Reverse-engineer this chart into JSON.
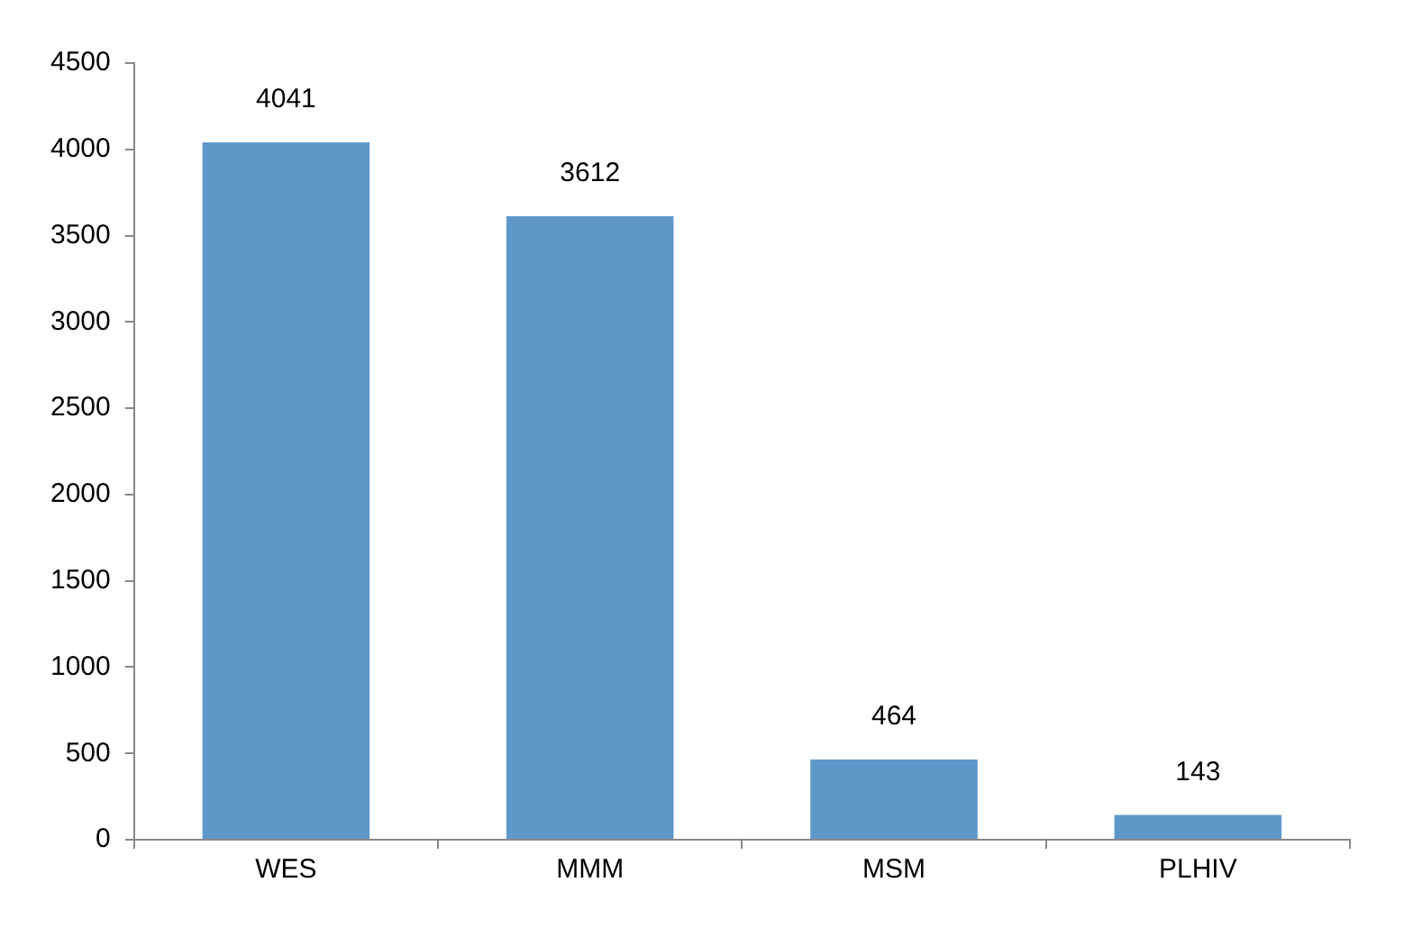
{
  "chart_data": {
    "type": "bar",
    "categories": [
      "WES",
      "MMM",
      "MSM",
      "PLHIV"
    ],
    "values": [
      4041,
      3612,
      464,
      143
    ],
    "color": "#5f97c9",
    "ylim": [
      0,
      4500
    ],
    "yticks": [
      0,
      500,
      1000,
      1500,
      2000,
      2500,
      3000,
      3500,
      4000,
      4500
    ],
    "grid": false,
    "legend": false,
    "data_labels": true
  }
}
